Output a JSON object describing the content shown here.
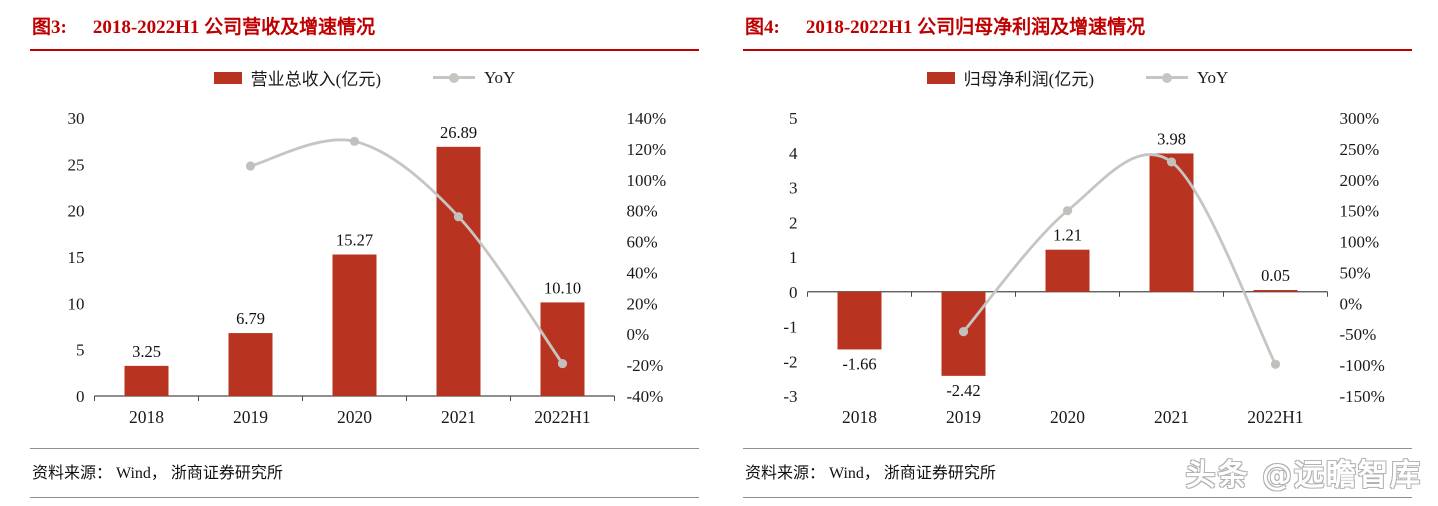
{
  "colors": {
    "bar": "#B93420",
    "line": "#C7C5C1",
    "accent_red": "#C00000",
    "axis_text": "#1A1A1A"
  },
  "watermark": {
    "text": "头条 @远瞻智库"
  },
  "chart_data": [
    {
      "type": "bar+line",
      "fig_label": "图3:",
      "title": "2018-2022H1 公司营收及增速情况",
      "categories": [
        "2018",
        "2019",
        "2020",
        "2021",
        "2022H1"
      ],
      "series": [
        {
          "name": "营业总收入(亿元)",
          "type": "bar",
          "axis": "left",
          "values": [
            3.25,
            6.79,
            15.27,
            26.89,
            10.1
          ],
          "labels": [
            "3.25",
            "6.79",
            "15.27",
            "26.89",
            "10.10"
          ],
          "color": "#B93420"
        },
        {
          "name": "YoY",
          "type": "line",
          "axis": "right",
          "values": [
            null,
            108.9,
            124.9,
            76.1,
            -19.0
          ],
          "color": "#C7C5C1"
        }
      ],
      "left_axis": {
        "min": 0,
        "max": 30,
        "step": 5
      },
      "right_axis": {
        "min": -40,
        "max": 140,
        "step": 20,
        "suffix": "%"
      },
      "legend_position": "top",
      "grid": "off",
      "source": "资料来源：  Wind，  浙商证券研究所"
    },
    {
      "type": "bar+line",
      "fig_label": "图4:",
      "title": "2018-2022H1 公司归母净利润及增速情况",
      "categories": [
        "2018",
        "2019",
        "2020",
        "2021",
        "2022H1"
      ],
      "series": [
        {
          "name": "归母净利润(亿元)",
          "type": "bar",
          "axis": "left",
          "values": [
            -1.66,
            -2.42,
            1.21,
            3.98,
            0.05
          ],
          "labels": [
            "-1.66",
            "-2.42",
            "1.21",
            "3.98",
            "0.05"
          ],
          "color": "#B93420"
        },
        {
          "name": "YoY",
          "type": "line",
          "axis": "right",
          "values": [
            null,
            -45.8,
            150.0,
            228.9,
            -98.7
          ],
          "color": "#C7C5C1"
        }
      ],
      "left_axis": {
        "min": -3,
        "max": 5,
        "step": 1
      },
      "right_axis": {
        "min": -150,
        "max": 300,
        "step": 50,
        "suffix": "%"
      },
      "legend_position": "top",
      "grid": "off",
      "source": "资料来源：  Wind，  浙商证券研究所"
    }
  ]
}
